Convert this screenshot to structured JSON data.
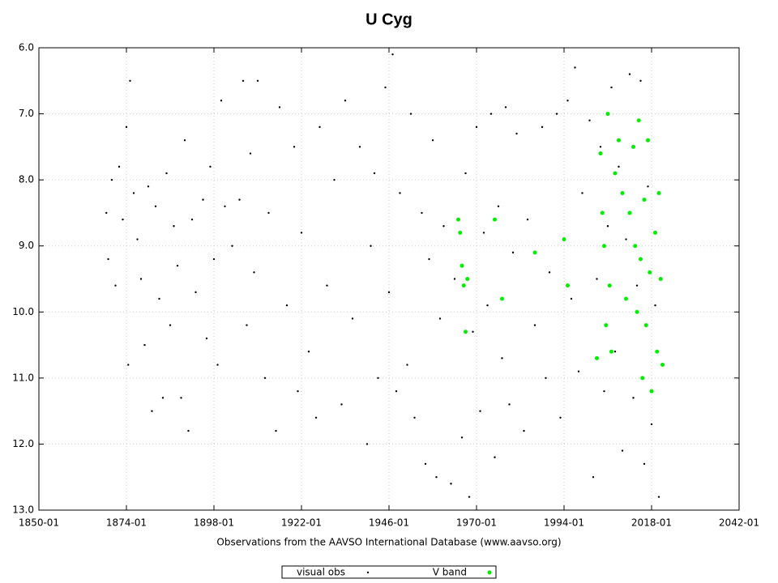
{
  "chart_data": {
    "type": "scatter",
    "title": "U Cyg",
    "x_label": "Observations from the AAVSO International Database (www.aavso.org)",
    "xlim": [
      1850,
      2042
    ],
    "xticks": [
      {
        "value": 1850,
        "label": "1850-01"
      },
      {
        "value": 1874,
        "label": "1874-01"
      },
      {
        "value": 1898,
        "label": "1898-01"
      },
      {
        "value": 1922,
        "label": "1922-01"
      },
      {
        "value": 1946,
        "label": "1946-01"
      },
      {
        "value": 1970,
        "label": "1970-01"
      },
      {
        "value": 1994,
        "label": "1994-01"
      },
      {
        "value": 2018,
        "label": "2018-01"
      },
      {
        "value": 2042,
        "label": "2042-01"
      }
    ],
    "ylim": [
      6,
      13
    ],
    "y_reversed": true,
    "yticks": [
      {
        "value": 6,
        "label": "6.0"
      },
      {
        "value": 7,
        "label": "7.0"
      },
      {
        "value": 8,
        "label": "8.0"
      },
      {
        "value": 9,
        "label": "9.0"
      },
      {
        "value": 10,
        "label": "10.0"
      },
      {
        "value": 11,
        "label": "11.0"
      },
      {
        "value": 12,
        "label": "12.0"
      },
      {
        "value": 13,
        "label": "13.0"
      }
    ],
    "grid": true,
    "legend": "bottom",
    "series": [
      {
        "name": "visual obs",
        "color": "#000000",
        "x": [
          1868.5,
          1869,
          1870,
          1871,
          1872,
          1873,
          1874,
          1874.5,
          1875,
          1876,
          1877,
          1878,
          1879,
          1880,
          1881,
          1882,
          1883,
          1884,
          1885,
          1886,
          1887,
          1888,
          1889,
          1890,
          1891,
          1892,
          1893,
          1895,
          1896,
          1897,
          1898,
          1899,
          1900,
          1901,
          1903,
          1905,
          1906,
          1907,
          1908,
          1909,
          1910,
          1912,
          1913,
          1915,
          1916,
          1918,
          1920,
          1921,
          1922,
          1924,
          1926,
          1927,
          1929,
          1931,
          1933,
          1934,
          1936,
          1938,
          1940,
          1941,
          1942,
          1943,
          1945,
          1946,
          1947,
          1948,
          1949,
          1951,
          1952,
          1953,
          1955,
          1956,
          1957,
          1958,
          1959,
          1960,
          1961,
          1963,
          1964,
          1966,
          1967,
          1968,
          1969,
          1970,
          1971,
          1972,
          1973,
          1974,
          1975,
          1976,
          1977,
          1978,
          1979,
          1980,
          1981,
          1983,
          1984,
          1986,
          1988,
          1989,
          1990,
          1992,
          1993,
          1995,
          1996,
          1997,
          1998,
          1999,
          2001,
          2002,
          2003,
          2004,
          2005,
          2006,
          2007,
          2008,
          2009,
          2010,
          2011,
          2012,
          2013,
          2014,
          2015,
          2016,
          2017,
          2018,
          2019,
          2020
        ],
        "values": [
          8.5,
          9.2,
          8.0,
          9.6,
          7.8,
          8.6,
          7.2,
          10.8,
          6.5,
          8.2,
          8.9,
          9.5,
          10.5,
          8.1,
          11.5,
          8.4,
          9.8,
          11.3,
          7.9,
          10.2,
          8.7,
          9.3,
          11.3,
          7.4,
          11.8,
          8.6,
          9.7,
          8.3,
          10.4,
          7.8,
          9.2,
          10.8,
          6.8,
          8.4,
          9.0,
          8.3,
          6.5,
          10.2,
          7.6,
          9.4,
          6.5,
          11.0,
          8.5,
          11.8,
          6.9,
          9.9,
          7.5,
          11.2,
          8.8,
          10.6,
          11.6,
          7.2,
          9.6,
          8.0,
          11.4,
          6.8,
          10.1,
          7.5,
          12.0,
          9.0,
          7.9,
          11.0,
          6.6,
          9.7,
          6.1,
          11.2,
          8.2,
          10.8,
          7.0,
          11.6,
          8.5,
          12.3,
          9.2,
          7.4,
          12.5,
          10.1,
          8.7,
          12.6,
          9.5,
          11.9,
          7.9,
          12.8,
          10.3,
          7.2,
          11.5,
          8.8,
          9.9,
          7.0,
          12.2,
          8.4,
          10.7,
          6.9,
          11.4,
          9.1,
          7.3,
          11.8,
          8.6,
          10.2,
          7.2,
          11.0,
          9.4,
          7.0,
          11.6,
          6.8,
          9.8,
          6.3,
          10.9,
          8.2,
          7.1,
          12.5,
          9.5,
          7.5,
          11.2,
          8.7,
          6.6,
          10.6,
          7.8,
          12.1,
          8.9,
          6.4,
          11.3,
          9.6,
          6.5,
          12.3,
          8.1,
          11.7,
          9.9,
          12.8
        ]
      },
      {
        "name": "V band",
        "color": "#00ee00",
        "x": [
          1965,
          1965.5,
          1966,
          1966.5,
          1967,
          1967.5,
          1975,
          1977,
          1986,
          1994,
          1995,
          2003,
          2004,
          2004.5,
          2005,
          2005.5,
          2006,
          2006.5,
          2007,
          2008,
          2009,
          2010,
          2011,
          2012,
          2013,
          2013.5,
          2014,
          2014.5,
          2015,
          2015.5,
          2016,
          2016.5,
          2017,
          2017.5,
          2018,
          2019,
          2019.5,
          2020,
          2020.5,
          2021
        ],
        "values": [
          8.6,
          8.8,
          9.3,
          9.6,
          10.3,
          9.5,
          8.6,
          9.8,
          9.1,
          8.9,
          9.6,
          10.7,
          7.6,
          8.5,
          9.0,
          10.2,
          7.0,
          9.6,
          10.6,
          7.9,
          7.4,
          8.2,
          9.8,
          8.5,
          7.5,
          9.0,
          10.0,
          7.1,
          9.2,
          11.0,
          8.3,
          10.2,
          7.4,
          9.4,
          11.2,
          8.8,
          10.6,
          8.2,
          9.5,
          10.8
        ]
      }
    ]
  }
}
